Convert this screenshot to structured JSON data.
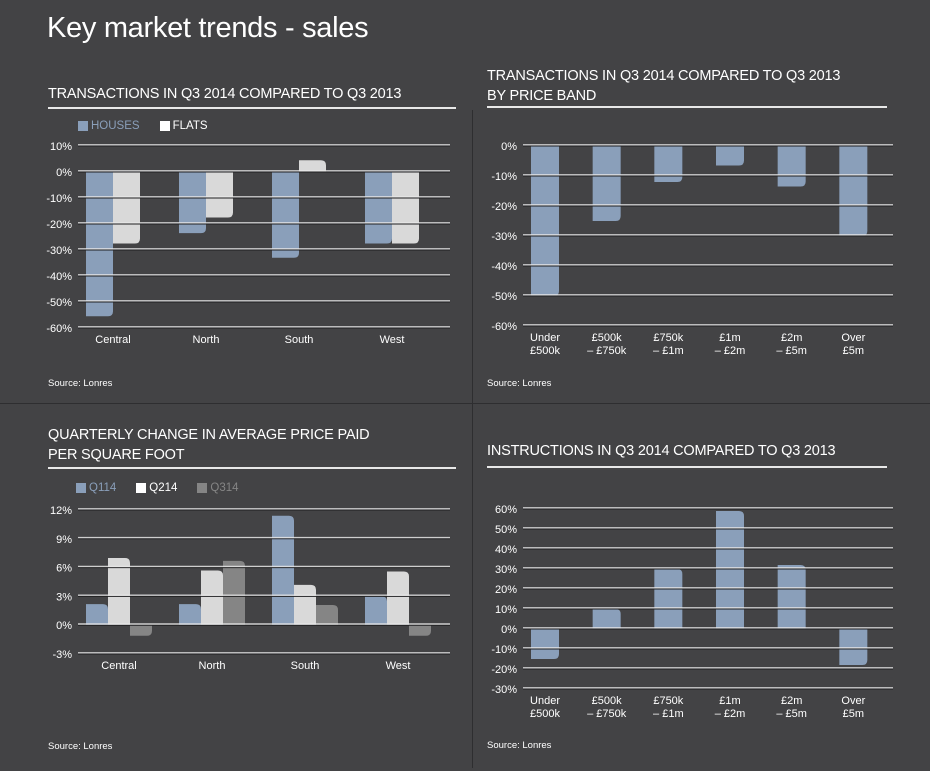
{
  "page": {
    "title": "Key market trends - sales"
  },
  "colors": {
    "background": "#434345",
    "houses": "#8a9fba",
    "flats": "#d9d9d9",
    "q314": "#858585",
    "grid": "#e6e6e6"
  },
  "chart_data": [
    {
      "id": "transactions-by-region",
      "type": "bar",
      "title": "TRANSACTIONS IN Q3 2014 COMPARED TO Q3 2013",
      "xlabel": "",
      "ylabel": "",
      "categories": [
        "Central",
        "North",
        "South",
        "West"
      ],
      "category_lines": [
        [
          "Central"
        ],
        [
          "North"
        ],
        [
          "South"
        ],
        [
          "West"
        ]
      ],
      "series": [
        {
          "name": "HOUSES",
          "color": "#8a9fba",
          "values": [
            -55.5,
            -23.5,
            -33,
            -27.5
          ]
        },
        {
          "name": "FLATS",
          "color": "#d9d9d9",
          "values": [
            -27.5,
            -17.5,
            4.5,
            -27.5
          ]
        }
      ],
      "ylim": [
        -60,
        10
      ],
      "yticks": [
        10,
        0,
        -10,
        -20,
        -30,
        -40,
        -50,
        -60
      ],
      "ytick_labels": [
        "10%",
        "0%",
        "-10%",
        "-20%",
        "-30%",
        "-40%",
        "-50%",
        "-60%"
      ],
      "grid": true,
      "legend": "top-left",
      "source": "Source: Lonres"
    },
    {
      "id": "transactions-by-price-band",
      "type": "bar",
      "title": "TRANSACTIONS IN Q3 2014 COMPARED TO Q3 2013\nBY PRICE BAND",
      "xlabel": "",
      "ylabel": "",
      "categories": [
        "Under £500k",
        "£500k – £750k",
        "£750k – £1m",
        "£1m – £2m",
        "£2m – £5m",
        "Over £5m"
      ],
      "category_lines": [
        [
          "Under",
          "£500k"
        ],
        [
          "£500k",
          "– £750k"
        ],
        [
          "£750k",
          "– £1m"
        ],
        [
          "£1m",
          "– £2m"
        ],
        [
          "£2m",
          "– £5m"
        ],
        [
          "Over",
          "£5m"
        ]
      ],
      "series": [
        {
          "name": "Transactions",
          "color": "#8a9fba",
          "values": [
            -50,
            -25,
            -12,
            -6.5,
            -13.5,
            -30
          ]
        }
      ],
      "ylim": [
        -60,
        0
      ],
      "yticks": [
        0,
        -10,
        -20,
        -30,
        -40,
        -50,
        -60
      ],
      "ytick_labels": [
        "0%",
        "-10%",
        "-20%",
        "-30%",
        "-40%",
        "-50%",
        "-60%"
      ],
      "grid": true,
      "legend": "none",
      "source": "Source: Lonres"
    },
    {
      "id": "price-per-sqft-change",
      "type": "bar",
      "title": "QUARTERLY CHANGE IN AVERAGE PRICE PAID\nPER SQUARE FOOT",
      "xlabel": "",
      "ylabel": "",
      "categories": [
        "Central",
        "North",
        "South",
        "West"
      ],
      "category_lines": [
        [
          "Central"
        ],
        [
          "North"
        ],
        [
          "South"
        ],
        [
          "West"
        ]
      ],
      "series": [
        {
          "name": "Q114",
          "color": "#8a9fba",
          "values": [
            2.2,
            2.2,
            11.4,
            3.0
          ]
        },
        {
          "name": "Q214",
          "color": "#d9d9d9",
          "values": [
            7.0,
            5.7,
            4.2,
            5.6
          ]
        },
        {
          "name": "Q314",
          "color": "#858585",
          "values": [
            -1.1,
            6.7,
            2.1,
            -1.1
          ]
        }
      ],
      "ylim": [
        -3,
        12
      ],
      "yticks": [
        12,
        9,
        6,
        3,
        0,
        -3
      ],
      "ytick_labels": [
        "12%",
        "9%",
        "6%",
        "3%",
        "0%",
        "-3%"
      ],
      "grid": true,
      "legend": "top-left",
      "source": "Source: Lonres"
    },
    {
      "id": "instructions-by-price-band",
      "type": "bar",
      "title": "INSTRUCTIONS IN Q3 2014 COMPARED TO Q3 2013",
      "xlabel": "",
      "ylabel": "",
      "categories": [
        "Under £500k",
        "£500k – £750k",
        "£750k – £1m",
        "£1m – £2m",
        "£2m – £5m",
        "Over £5m"
      ],
      "category_lines": [
        [
          "Under",
          "£500k"
        ],
        [
          "£500k",
          "– £750k"
        ],
        [
          "£750k",
          "– £1m"
        ],
        [
          "£1m",
          "– £2m"
        ],
        [
          "£2m",
          "– £5m"
        ],
        [
          "Over",
          "£5m"
        ]
      ],
      "series": [
        {
          "name": "Instructions",
          "color": "#8a9fba",
          "values": [
            -15,
            10,
            30,
            59,
            32,
            -18
          ]
        }
      ],
      "ylim": [
        -30,
        60
      ],
      "yticks": [
        60,
        50,
        40,
        30,
        20,
        10,
        0,
        -10,
        -20,
        -30
      ],
      "ytick_labels": [
        "60%",
        "50%",
        "40%",
        "30%",
        "20%",
        "10%",
        "0%",
        "-10%",
        "-20%",
        "-30%"
      ],
      "grid": true,
      "legend": "none",
      "source": "Source: Lonres"
    }
  ]
}
